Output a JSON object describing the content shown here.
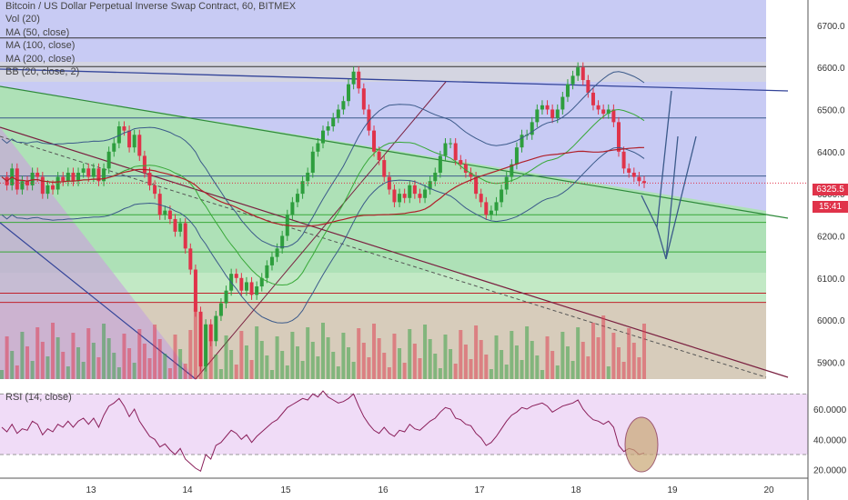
{
  "legend": {
    "title": "Bitcoin / US Dollar Perpetual Inverse Swap Contract, 60, BITMEX",
    "vol": "Vol (20)",
    "ma50": "MA (50, close)",
    "ma100": "MA (100, close)",
    "ma200": "MA (200, close)",
    "bb": "BB (20, close, 2)"
  },
  "rsi_legend": "RSI (14, close)",
  "price_tag": {
    "price": "6325.5",
    "countdown": "15:41"
  },
  "colors": {
    "bull": "#2e9e3e",
    "bear": "#e0334a",
    "zone_blue": "#b6b9f0",
    "zone_green": "#a8e6a8",
    "zone_red": "#f2a8b0",
    "zone_purple": "#c8a8d8",
    "rsi_bg": "#f0dcf7",
    "rsi_line": "#8a1f5a",
    "ma_red": "#b0202a",
    "ma_green": "#38a838",
    "bb_line": "#3b5a8a",
    "highlight": "#c9a874"
  },
  "chart_data": {
    "type": "line",
    "price_axis": {
      "ticks": [
        "6700.0",
        "6600.0",
        "6500.0",
        "6400.0",
        "6300.0",
        "6200.0",
        "6100.0",
        "6000.0",
        "5900.0"
      ],
      "range": [
        5860,
        6760
      ]
    },
    "rsi_axis": {
      "ticks": [
        "60.0000",
        "40.0000",
        "20.0000"
      ],
      "range": [
        15,
        75
      ]
    },
    "x_labels": [
      "13",
      "14",
      "15",
      "16",
      "17",
      "18",
      "19",
      "20"
    ],
    "horizontal_levels": [
      6670,
      6602,
      6480,
      6342,
      6250,
      6232,
      6162,
      6064,
      6042
    ],
    "current_price": 6325.5,
    "price_close": [
      6340,
      6320,
      6360,
      6310,
      6330,
      6320,
      6350,
      6340,
      6300,
      6320,
      6310,
      6340,
      6330,
      6350,
      6330,
      6350,
      6360,
      6340,
      6360,
      6330,
      6360,
      6400,
      6420,
      6460,
      6450,
      6410,
      6440,
      6390,
      6350,
      6320,
      6300,
      6250,
      6260,
      6240,
      6210,
      6230,
      6170,
      6120,
      6020,
      5890,
      5990,
      5950,
      6010,
      6040,
      6070,
      6110,
      6100,
      6070,
      6090,
      6060,
      6080,
      6100,
      6130,
      6150,
      6170,
      6200,
      6250,
      6280,
      6300,
      6330,
      6350,
      6400,
      6420,
      6450,
      6460,
      6480,
      6500,
      6520,
      6560,
      6590,
      6550,
      6500,
      6450,
      6400,
      6380,
      6340,
      6310,
      6280,
      6300,
      6290,
      6320,
      6300,
      6290,
      6310,
      6330,
      6350,
      6390,
      6420,
      6420,
      6380,
      6370,
      6350,
      6340,
      6300,
      6280,
      6250,
      6260,
      6280,
      6310,
      6340,
      6370,
      6410,
      6440,
      6440,
      6470,
      6500,
      6510,
      6500,
      6480,
      6500,
      6530,
      6560,
      6580,
      6600,
      6570,
      6540,
      6510,
      6500,
      6490,
      6500,
      6470,
      6400,
      6360,
      6350,
      6340,
      6330,
      6325.5
    ],
    "rsi": [
      48,
      45,
      50,
      44,
      47,
      46,
      52,
      50,
      43,
      47,
      45,
      50,
      48,
      52,
      48,
      52,
      54,
      50,
      54,
      48,
      56,
      62,
      64,
      67,
      62,
      55,
      60,
      52,
      47,
      42,
      40,
      35,
      37,
      33,
      30,
      34,
      27,
      24,
      21,
      19,
      30,
      27,
      36,
      38,
      42,
      46,
      44,
      40,
      43,
      38,
      42,
      45,
      48,
      51,
      53,
      57,
      61,
      63,
      65,
      67,
      66,
      70,
      68,
      72,
      68,
      66,
      64,
      65,
      67,
      70,
      62,
      55,
      50,
      46,
      44,
      48,
      44,
      42,
      46,
      45,
      50,
      47,
      46,
      49,
      52,
      54,
      58,
      61,
      60,
      54,
      53,
      50,
      49,
      44,
      41,
      36,
      38,
      42,
      47,
      52,
      56,
      58,
      61,
      60,
      62,
      63,
      64,
      62,
      58,
      60,
      62,
      63,
      64,
      66,
      60,
      56,
      53,
      52,
      50,
      52,
      48,
      36,
      32,
      34,
      33,
      30,
      31
    ]
  }
}
